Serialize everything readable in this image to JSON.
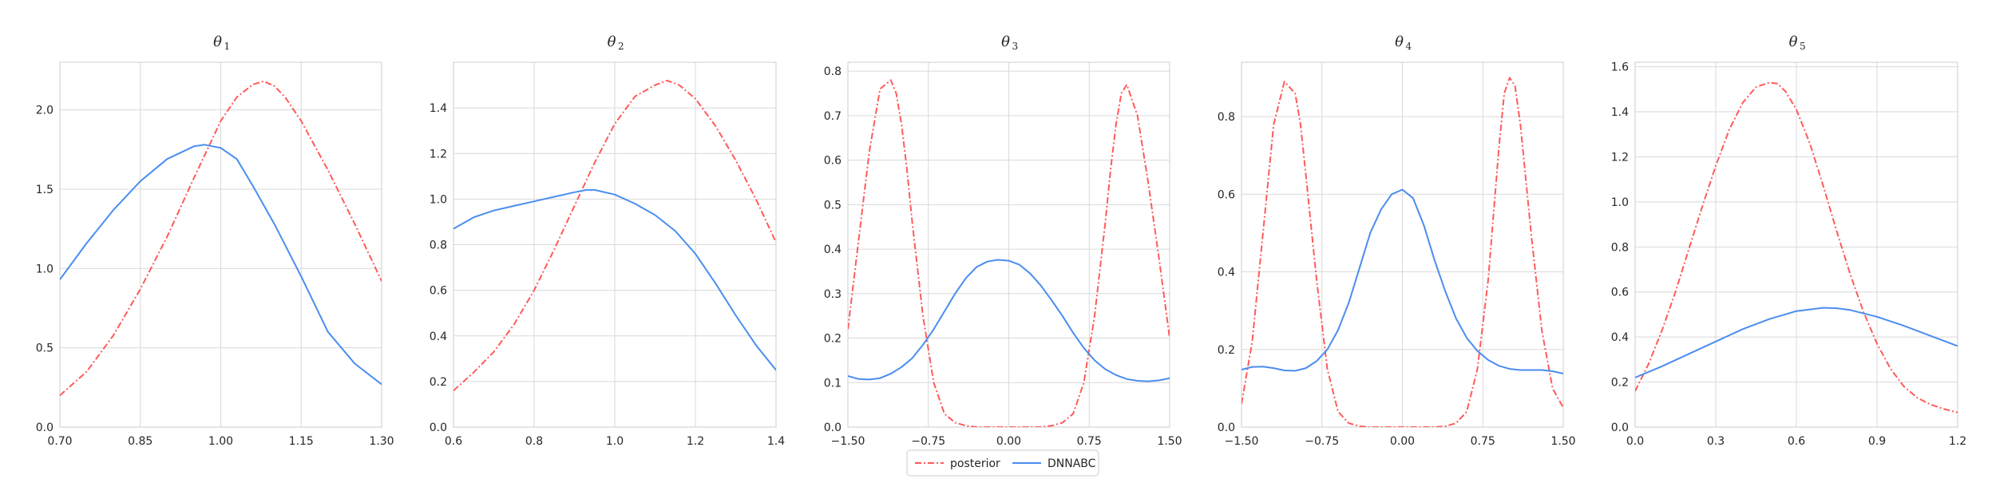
{
  "colors": {
    "posterior": "#ff5a5a",
    "dnnabc": "#4a8df0",
    "grid": "#d9d9d9",
    "frame": "#cccccc"
  },
  "legend": {
    "entries": [
      {
        "label": "posterior",
        "style": "dashdot",
        "color": "#ff5a5a"
      },
      {
        "label": "DNNABC",
        "style": "solid",
        "color": "#4a8df0"
      }
    ],
    "placement": "bottom-center"
  },
  "chart_data": [
    {
      "type": "line",
      "title": "θ",
      "title_subscript": "1",
      "xlim": [
        0.7,
        1.3
      ],
      "ylim": [
        0,
        2.3
      ],
      "xticks": [
        0.7,
        0.85,
        1.0,
        1.15,
        1.3
      ],
      "xtick_labels": [
        "0.70",
        "0.85",
        "1.00",
        "1.15",
        "1.30"
      ],
      "yticks": [
        0,
        0.5,
        1.0,
        1.5,
        2.0
      ],
      "ytick_labels": [
        "0.0",
        "0.5",
        "1.0",
        "1.5",
        "2.0"
      ],
      "grid": true,
      "series": [
        {
          "name": "posterior",
          "x": [
            0.7,
            0.75,
            0.8,
            0.85,
            0.9,
            0.95,
            1.0,
            1.03,
            1.06,
            1.08,
            1.1,
            1.12,
            1.15,
            1.2,
            1.25,
            1.3
          ],
          "y": [
            0.2,
            0.35,
            0.58,
            0.87,
            1.2,
            1.57,
            1.93,
            2.08,
            2.16,
            2.18,
            2.15,
            2.08,
            1.93,
            1.62,
            1.28,
            0.92
          ]
        },
        {
          "name": "DNNABC",
          "x": [
            0.7,
            0.75,
            0.8,
            0.85,
            0.9,
            0.95,
            0.97,
            1.0,
            1.03,
            1.06,
            1.1,
            1.15,
            1.2,
            1.25,
            1.3
          ],
          "y": [
            0.93,
            1.16,
            1.37,
            1.55,
            1.69,
            1.77,
            1.78,
            1.76,
            1.69,
            1.52,
            1.28,
            0.95,
            0.6,
            0.4,
            0.27
          ]
        }
      ]
    },
    {
      "type": "line",
      "title": "θ",
      "title_subscript": "2",
      "xlim": [
        0.6,
        1.4
      ],
      "ylim": [
        0,
        1.6
      ],
      "xticks": [
        0.6,
        0.8,
        1.0,
        1.2,
        1.4
      ],
      "xtick_labels": [
        "0.6",
        "0.8",
        "1.0",
        "1.2",
        "1.4"
      ],
      "yticks": [
        0,
        0.2,
        0.4,
        0.6,
        0.8,
        1.0,
        1.2,
        1.4
      ],
      "ytick_labels": [
        "0.0",
        "0.2",
        "0.4",
        "0.6",
        "0.8",
        "1.0",
        "1.2",
        "1.4"
      ],
      "grid": true,
      "series": [
        {
          "name": "posterior",
          "x": [
            0.6,
            0.65,
            0.7,
            0.75,
            0.8,
            0.85,
            0.9,
            0.95,
            1.0,
            1.05,
            1.1,
            1.13,
            1.16,
            1.2,
            1.25,
            1.3,
            1.35,
            1.4
          ],
          "y": [
            0.16,
            0.24,
            0.33,
            0.45,
            0.6,
            0.78,
            0.97,
            1.16,
            1.33,
            1.45,
            1.5,
            1.52,
            1.5,
            1.44,
            1.32,
            1.17,
            1.0,
            0.81
          ]
        },
        {
          "name": "DNNABC",
          "x": [
            0.6,
            0.65,
            0.7,
            0.75,
            0.8,
            0.85,
            0.9,
            0.93,
            0.95,
            1.0,
            1.05,
            1.1,
            1.15,
            1.2,
            1.25,
            1.3,
            1.35,
            1.4
          ],
          "y": [
            0.87,
            0.92,
            0.95,
            0.97,
            0.99,
            1.01,
            1.03,
            1.04,
            1.04,
            1.02,
            0.98,
            0.93,
            0.86,
            0.76,
            0.63,
            0.49,
            0.36,
            0.25
          ]
        }
      ]
    },
    {
      "type": "line",
      "title": "θ",
      "title_subscript": "3",
      "xlim": [
        -1.5,
        1.5
      ],
      "ylim": [
        0,
        0.82
      ],
      "xticks": [
        -1.5,
        -0.75,
        0.0,
        0.75,
        1.5
      ],
      "xtick_labels": [
        "−1.50",
        "−0.75",
        "0.00",
        "0.75",
        "1.50"
      ],
      "yticks": [
        0,
        0.1,
        0.2,
        0.3,
        0.4,
        0.5,
        0.6,
        0.7,
        0.8
      ],
      "ytick_labels": [
        "0.0",
        "0.1",
        "0.2",
        "0.3",
        "0.4",
        "0.5",
        "0.6",
        "0.7",
        "0.8"
      ],
      "grid": true,
      "series": [
        {
          "name": "posterior",
          "x": [
            -1.5,
            -1.4,
            -1.3,
            -1.2,
            -1.1,
            -1.05,
            -1.0,
            -0.95,
            -0.9,
            -0.8,
            -0.7,
            -0.6,
            -0.5,
            -0.4,
            -0.3,
            0.0,
            0.3,
            0.4,
            0.5,
            0.6,
            0.7,
            0.8,
            0.9,
            0.95,
            1.0,
            1.05,
            1.1,
            1.2,
            1.3,
            1.4,
            1.5
          ],
          "y": [
            0.22,
            0.42,
            0.62,
            0.76,
            0.78,
            0.75,
            0.68,
            0.58,
            0.46,
            0.25,
            0.1,
            0.03,
            0.01,
            0.003,
            0.0,
            0.0,
            0.0,
            0.003,
            0.01,
            0.03,
            0.1,
            0.25,
            0.46,
            0.58,
            0.68,
            0.75,
            0.77,
            0.7,
            0.55,
            0.38,
            0.2
          ]
        },
        {
          "name": "DNNABC",
          "x": [
            -1.5,
            -1.4,
            -1.3,
            -1.2,
            -1.1,
            -1.0,
            -0.9,
            -0.8,
            -0.7,
            -0.6,
            -0.5,
            -0.4,
            -0.3,
            -0.2,
            -0.1,
            0.0,
            0.1,
            0.2,
            0.3,
            0.4,
            0.5,
            0.6,
            0.7,
            0.8,
            0.9,
            1.0,
            1.1,
            1.2,
            1.3,
            1.4,
            1.5
          ],
          "y": [
            0.115,
            0.108,
            0.107,
            0.11,
            0.12,
            0.135,
            0.155,
            0.185,
            0.22,
            0.26,
            0.3,
            0.335,
            0.36,
            0.372,
            0.376,
            0.374,
            0.365,
            0.345,
            0.318,
            0.285,
            0.25,
            0.212,
            0.178,
            0.15,
            0.13,
            0.117,
            0.108,
            0.104,
            0.103,
            0.105,
            0.11
          ]
        }
      ]
    },
    {
      "type": "line",
      "title": "θ",
      "title_subscript": "4",
      "xlim": [
        -1.5,
        1.5
      ],
      "ylim": [
        0,
        0.94
      ],
      "xticks": [
        -1.5,
        -0.75,
        0.0,
        0.75,
        1.5
      ],
      "xtick_labels": [
        "−1.50",
        "−0.75",
        "0.00",
        "0.75",
        "1.50"
      ],
      "yticks": [
        0,
        0.2,
        0.4,
        0.6,
        0.8
      ],
      "ytick_labels": [
        "0.0",
        "0.2",
        "0.4",
        "0.6",
        "0.8"
      ],
      "grid": true,
      "series": [
        {
          "name": "posterior",
          "x": [
            -1.5,
            -1.4,
            -1.3,
            -1.2,
            -1.1,
            -1.0,
            -0.95,
            -0.9,
            -0.8,
            -0.7,
            -0.6,
            -0.5,
            -0.4,
            -0.3,
            0.0,
            0.3,
            0.4,
            0.5,
            0.6,
            0.7,
            0.8,
            0.9,
            0.95,
            1.0,
            1.05,
            1.1,
            1.2,
            1.3,
            1.4,
            1.5
          ],
          "y": [
            0.06,
            0.22,
            0.5,
            0.78,
            0.89,
            0.86,
            0.78,
            0.65,
            0.38,
            0.15,
            0.04,
            0.01,
            0.002,
            0.0,
            0.0,
            0.0,
            0.002,
            0.01,
            0.04,
            0.15,
            0.38,
            0.72,
            0.86,
            0.9,
            0.88,
            0.78,
            0.5,
            0.25,
            0.1,
            0.05
          ]
        },
        {
          "name": "DNNABC",
          "x": [
            -1.5,
            -1.4,
            -1.3,
            -1.2,
            -1.1,
            -1.0,
            -0.9,
            -0.8,
            -0.7,
            -0.6,
            -0.5,
            -0.4,
            -0.3,
            -0.2,
            -0.1,
            0.0,
            0.1,
            0.2,
            0.3,
            0.4,
            0.5,
            0.6,
            0.7,
            0.8,
            0.9,
            1.0,
            1.1,
            1.2,
            1.3,
            1.4,
            1.5
          ],
          "y": [
            0.148,
            0.155,
            0.156,
            0.152,
            0.146,
            0.145,
            0.152,
            0.17,
            0.2,
            0.25,
            0.32,
            0.41,
            0.5,
            0.56,
            0.6,
            0.612,
            0.59,
            0.52,
            0.43,
            0.35,
            0.28,
            0.23,
            0.196,
            0.173,
            0.158,
            0.15,
            0.147,
            0.147,
            0.147,
            0.144,
            0.138
          ]
        }
      ]
    },
    {
      "type": "line",
      "title": "θ",
      "title_subscript": "5",
      "xlim": [
        0.0,
        1.2
      ],
      "ylim": [
        0,
        1.62
      ],
      "xticks": [
        0.0,
        0.3,
        0.6,
        0.9,
        1.2
      ],
      "xtick_labels": [
        "0.0",
        "0.3",
        "0.6",
        "0.9",
        "1.2"
      ],
      "yticks": [
        0,
        0.2,
        0.4,
        0.6,
        0.8,
        1.0,
        1.2,
        1.4,
        1.6
      ],
      "ytick_labels": [
        "0.0",
        "0.2",
        "0.4",
        "0.6",
        "0.8",
        "1.0",
        "1.2",
        "1.4",
        "1.6"
      ],
      "grid": true,
      "series": [
        {
          "name": "posterior",
          "x": [
            0.0,
            0.05,
            0.1,
            0.15,
            0.2,
            0.25,
            0.3,
            0.35,
            0.4,
            0.45,
            0.5,
            0.53,
            0.56,
            0.6,
            0.65,
            0.7,
            0.75,
            0.8,
            0.85,
            0.9,
            0.95,
            1.0,
            1.05,
            1.1,
            1.15,
            1.2
          ],
          "y": [
            0.16,
            0.28,
            0.43,
            0.6,
            0.79,
            0.98,
            1.16,
            1.32,
            1.44,
            1.51,
            1.53,
            1.525,
            1.49,
            1.41,
            1.26,
            1.07,
            0.87,
            0.68,
            0.51,
            0.37,
            0.26,
            0.18,
            0.13,
            0.1,
            0.08,
            0.065
          ]
        },
        {
          "name": "DNNABC",
          "x": [
            0.0,
            0.1,
            0.2,
            0.3,
            0.4,
            0.5,
            0.6,
            0.7,
            0.75,
            0.8,
            0.9,
            1.0,
            1.1,
            1.2
          ],
          "y": [
            0.22,
            0.27,
            0.325,
            0.38,
            0.435,
            0.48,
            0.515,
            0.53,
            0.528,
            0.52,
            0.49,
            0.45,
            0.405,
            0.36
          ]
        }
      ]
    }
  ]
}
